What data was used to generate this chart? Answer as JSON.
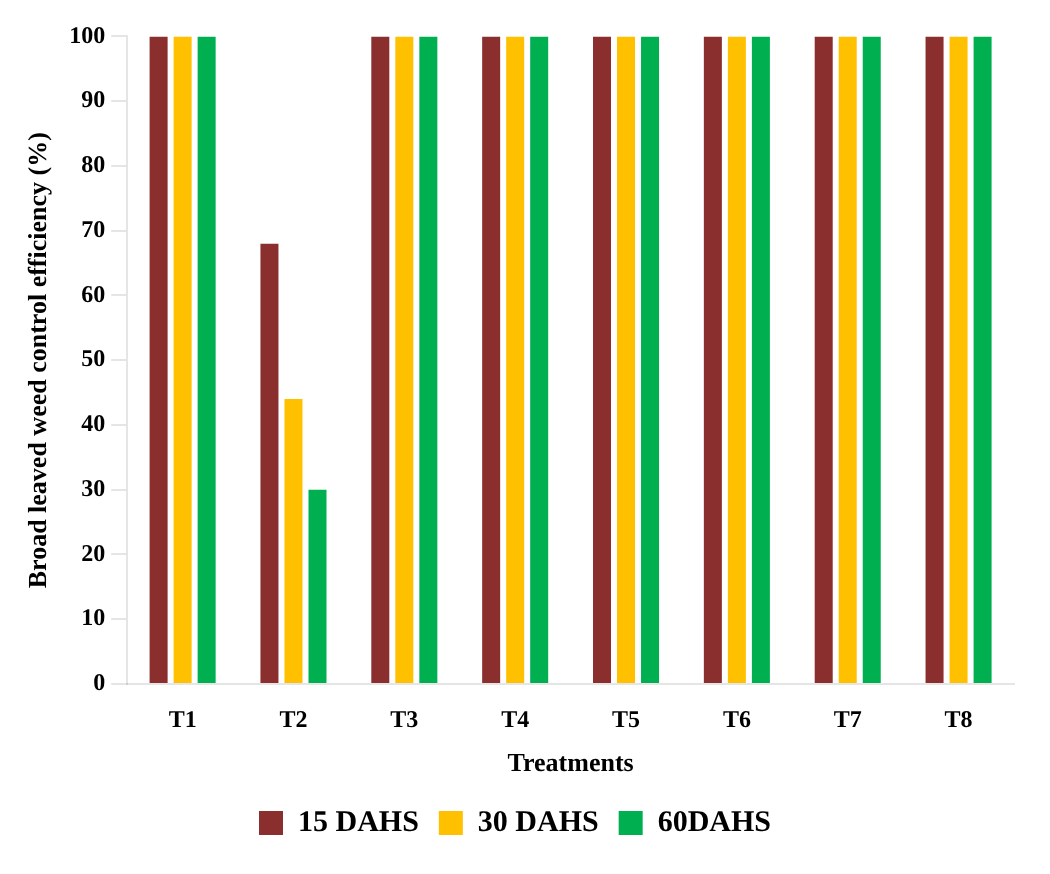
{
  "chart_data": {
    "type": "bar",
    "xlabel": "Treatments",
    "ylabel": "Broad leaved weed control efficiency (%)",
    "categories": [
      "T1",
      "T2",
      "T3",
      "T4",
      "T5",
      "T6",
      "T7",
      "T8"
    ],
    "series": [
      {
        "name": "15 DAHS",
        "color": "#8b2e2e",
        "values": [
          100,
          68,
          100,
          100,
          100,
          100,
          100,
          100
        ]
      },
      {
        "name": "30 DAHS",
        "color": "#ffc000",
        "values": [
          100,
          44,
          100,
          100,
          100,
          100,
          100,
          100
        ]
      },
      {
        "name": "60DAHS",
        "color": "#00b050",
        "values": [
          100,
          30,
          100,
          100,
          100,
          100,
          100,
          100
        ]
      }
    ],
    "ylim": [
      0,
      100
    ],
    "yticks": [
      0,
      10,
      20,
      30,
      40,
      50,
      60,
      70,
      80,
      90,
      100
    ],
    "grid": false,
    "legend": "bottom"
  }
}
